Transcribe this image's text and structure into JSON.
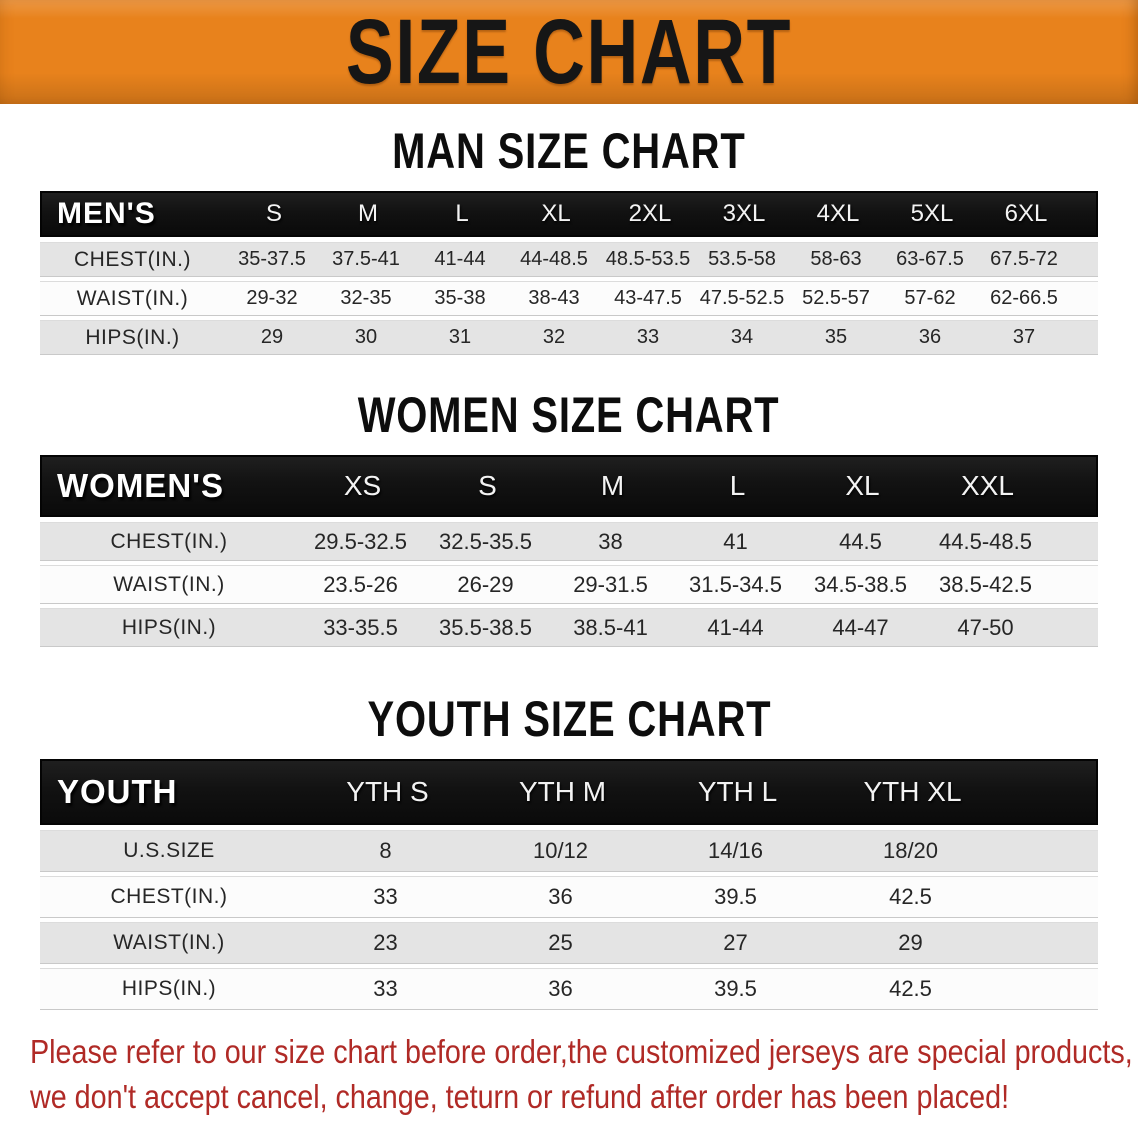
{
  "banner": {
    "title": "SIZE CHART",
    "bg_color": "#e8821c",
    "text_color": "#161616"
  },
  "sections": [
    {
      "heading": "MAN SIZE CHART",
      "table": {
        "header_label": "MEN'S",
        "columns": [
          "S",
          "M",
          "L",
          "XL",
          "2XL",
          "3XL",
          "4XL",
          "5XL",
          "6XL"
        ],
        "rows": [
          {
            "label": "CHEST(IN.)",
            "values": [
              "35-37.5",
              "37.5-41",
              "41-44",
              "44-48.5",
              "48.5-53.5",
              "53.5-58",
              "58-63",
              "63-67.5",
              "67.5-72"
            ]
          },
          {
            "label": "WAIST(IN.)",
            "values": [
              "29-32",
              "32-35",
              "35-38",
              "38-43",
              "43-47.5",
              "47.5-52.5",
              "52.5-57",
              "57-62",
              "62-66.5"
            ]
          },
          {
            "label": "HIPS(IN.)",
            "values": [
              "29",
              "30",
              "31",
              "32",
              "33",
              "34",
              "35",
              "36",
              "37"
            ]
          }
        ]
      }
    },
    {
      "heading": "WOMEN SIZE CHART",
      "table": {
        "header_label": "WOMEN'S",
        "columns": [
          "XS",
          "S",
          "M",
          "L",
          "XL",
          "XXL"
        ],
        "rows": [
          {
            "label": "CHEST(IN.)",
            "values": [
              "29.5-32.5",
              "32.5-35.5",
              "38",
              "41",
              "44.5",
              "44.5-48.5"
            ]
          },
          {
            "label": "WAIST(IN.)",
            "values": [
              "23.5-26",
              "26-29",
              "29-31.5",
              "31.5-34.5",
              "34.5-38.5",
              "38.5-42.5"
            ]
          },
          {
            "label": "HIPS(IN.)",
            "values": [
              "33-35.5",
              "35.5-38.5",
              "38.5-41",
              "41-44",
              "44-47",
              "47-50"
            ]
          }
        ]
      }
    },
    {
      "heading": "YOUTH SIZE CHART",
      "table": {
        "header_label": "YOUTH",
        "columns": [
          "YTH S",
          "YTH M",
          "YTH L",
          "YTH XL"
        ],
        "rows": [
          {
            "label": "U.S.SIZE",
            "values": [
              "8",
              "10/12",
              "14/16",
              "18/20"
            ]
          },
          {
            "label": "CHEST(IN.)",
            "values": [
              "33",
              "36",
              "39.5",
              "42.5"
            ]
          },
          {
            "label": "WAIST(IN.)",
            "values": [
              "23",
              "25",
              "27",
              "29"
            ]
          },
          {
            "label": "HIPS(IN.)",
            "values": [
              "33",
              "36",
              "39.5",
              "42.5"
            ]
          }
        ]
      }
    }
  ],
  "disclaimer": {
    "line1": "Please refer to our size chart before order,the customized jerseys are special products,",
    "line2": "we don't accept cancel, change, teturn or refund after order has been placed!",
    "color": "#b02a26"
  }
}
